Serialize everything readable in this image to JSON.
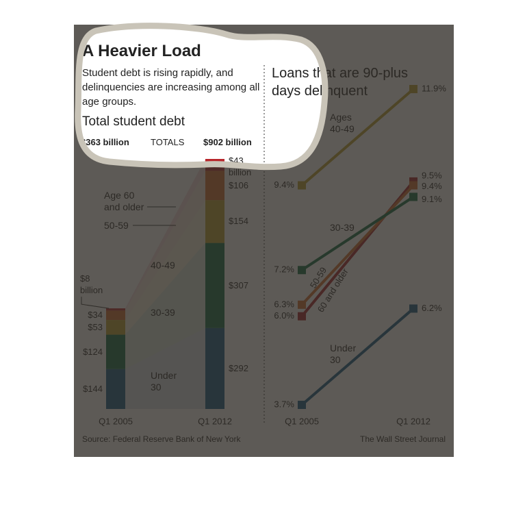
{
  "title": "A Heavier Load",
  "subtitle": "Student debt is rising rapidly, and delinquencies are increasing among all age groups.",
  "source": "Source: Federal Reserve Bank of New York",
  "credit": "The Wall Street Journal",
  "chart_data": [
    {
      "type": "stacked-bar",
      "title": "Total student debt",
      "categories": [
        "Q1 2005",
        "Q1 2012"
      ],
      "totals": {
        "label": "TOTALS",
        "values": [
          363,
          902
        ],
        "value_labels": [
          "$363 billion",
          "$902 billion"
        ]
      },
      "series": [
        {
          "name": "Under 30",
          "color": "#0f5784",
          "values": [
            144,
            292
          ],
          "value_labels": [
            "$144",
            "$292"
          ]
        },
        {
          "name": "30-39",
          "color": "#0d6a40",
          "values": [
            124,
            307
          ],
          "value_labels": [
            "$124",
            "$307"
          ]
        },
        {
          "name": "40-49",
          "color": "#b9a12c",
          "values": [
            53,
            154
          ],
          "value_labels": [
            "$53",
            "$154"
          ]
        },
        {
          "name": "50-59",
          "color": "#cf6a2a",
          "values": [
            34,
            106
          ],
          "value_labels": [
            "$34",
            "$106"
          ]
        },
        {
          "name": "Age 60 and older",
          "color": "#b8262b",
          "values": [
            8,
            43
          ],
          "value_labels": [
            "$8 billion",
            "$43 billion"
          ]
        }
      ]
    },
    {
      "type": "slope",
      "title": "Loans that are 90-plus days delinquent",
      "categories": [
        "Q1 2005",
        "Q1 2012"
      ],
      "series": [
        {
          "name": "Ages 40-49",
          "color": "#b9a12c",
          "values": [
            9.4,
            11.9
          ],
          "value_labels": [
            "9.4%",
            "11.9%"
          ]
        },
        {
          "name": "60 and older",
          "color": "#a61f24",
          "values": [
            6.0,
            9.5
          ],
          "value_labels": [
            "6.0%",
            "9.5%"
          ]
        },
        {
          "name": "50-59",
          "color": "#cf6a2a",
          "values": [
            6.3,
            9.4
          ],
          "value_labels": [
            "6.3%",
            "9.4%"
          ]
        },
        {
          "name": "30-39",
          "color": "#0d6a40",
          "values": [
            7.2,
            9.1
          ],
          "value_labels": [
            "7.2%",
            "9.1%"
          ]
        },
        {
          "name": "Under 30",
          "color": "#0f5784",
          "values": [
            3.7,
            6.2
          ],
          "value_labels": [
            "3.7%",
            "6.2%"
          ]
        }
      ]
    }
  ]
}
